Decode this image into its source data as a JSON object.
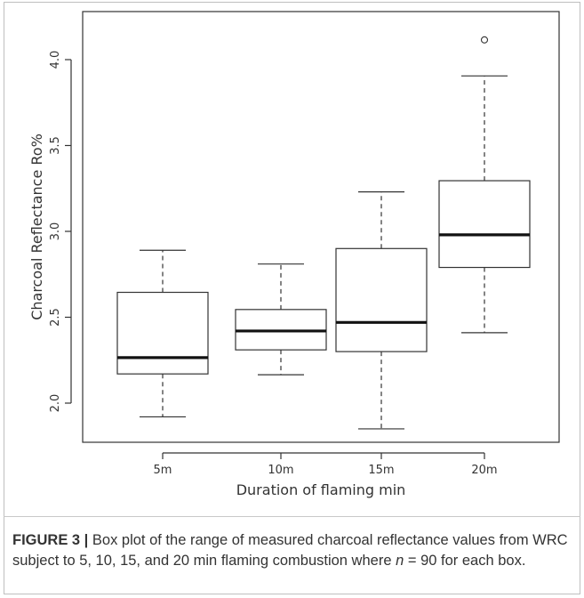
{
  "caption": {
    "label": "FIGURE 3 |",
    "text_part1": " Box plot of the range of measured charcoal reflectance values from WRC subject to 5, 10, 15, and 20 min flaming combustion where ",
    "n_symbol": "n",
    "text_part2": " = 90 for each box."
  },
  "chart_data": {
    "type": "box",
    "xlabel": "Duration of flaming min",
    "ylabel": "Charcoal Reflectance Ro%",
    "ylim": [
      1.75,
      4.25
    ],
    "yticks": [
      "2.0",
      "2.5",
      "3.0",
      "3.5",
      "4.0"
    ],
    "categories": [
      "5m",
      "10m",
      "15m",
      "20m"
    ],
    "boxes": [
      {
        "category": "5m",
        "whisker_low": 1.92,
        "q1": 2.17,
        "median": 2.265,
        "q3": 2.645,
        "whisker_high": 2.89,
        "outliers": []
      },
      {
        "category": "10m",
        "whisker_low": 2.165,
        "q1": 2.31,
        "median": 2.42,
        "q3": 2.545,
        "whisker_high": 2.81,
        "outliers": []
      },
      {
        "category": "15m",
        "whisker_low": 1.85,
        "q1": 2.3,
        "median": 2.47,
        "q3": 2.9,
        "whisker_high": 3.23,
        "outliers": []
      },
      {
        "category": "20m",
        "whisker_low": 2.41,
        "q1": 2.79,
        "median": 2.98,
        "q3": 3.295,
        "whisker_high": 3.905,
        "outliers": [
          4.115
        ]
      }
    ]
  }
}
